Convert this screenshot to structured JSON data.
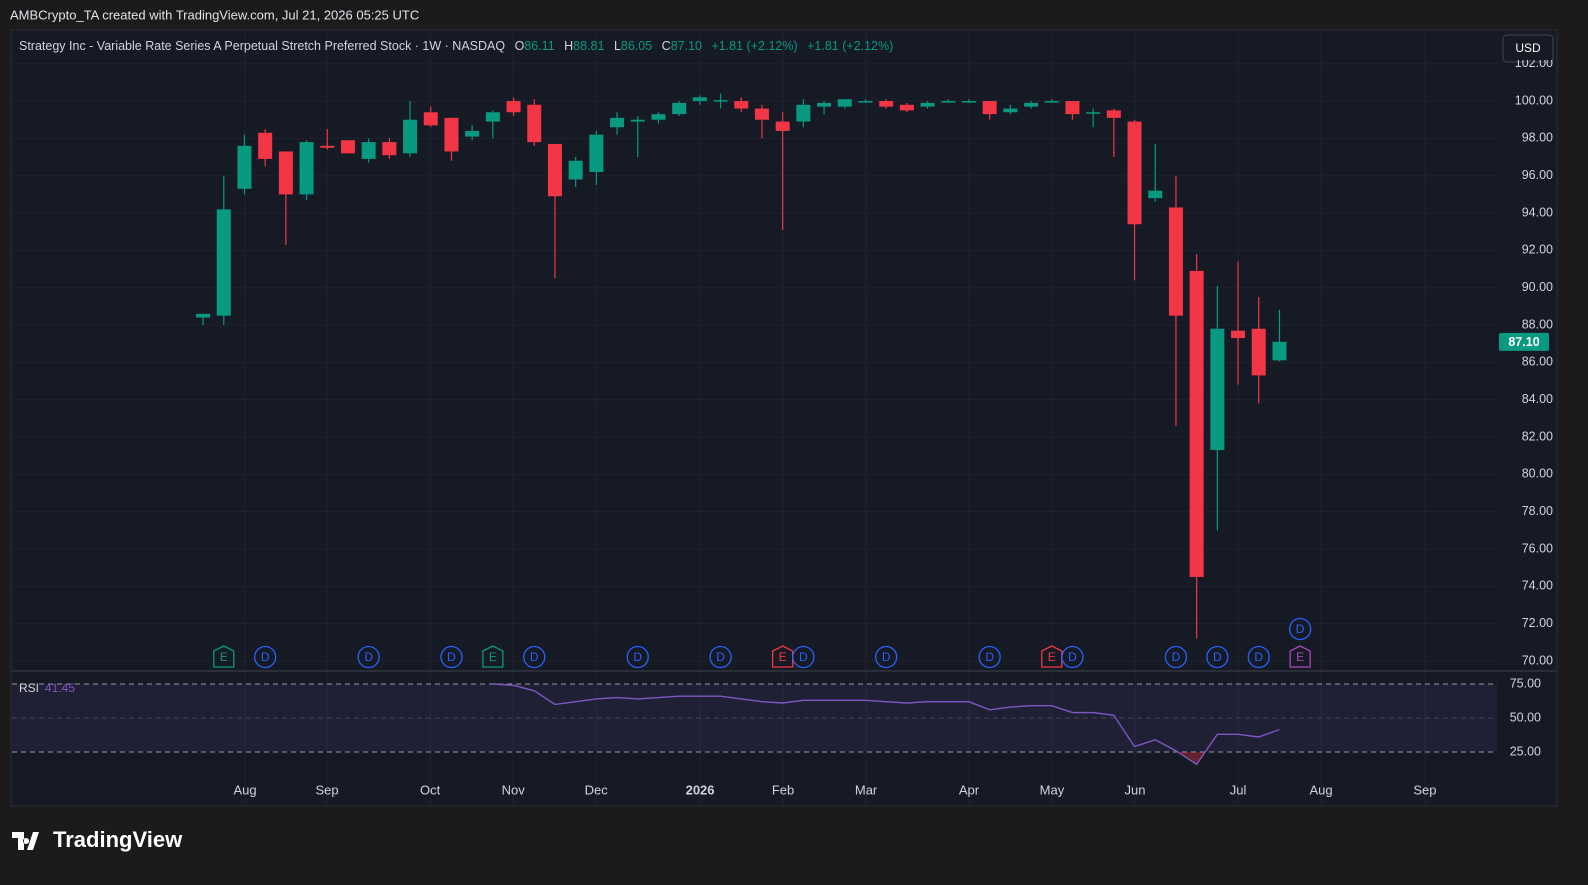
{
  "header": {
    "credit": "AMBCrypto_TA created with TradingView.com, Jul 21, 2026 05:25 UTC",
    "symbol": "Strategy Inc - Variable Rate Series A Perpetual Stretch Preferred Stock · 1W · NASDAQ",
    "o_key": "O",
    "o": "86.11",
    "h_key": "H",
    "h": "88.81",
    "l_key": "L",
    "l": "86.05",
    "c_key": "C",
    "c": "87.10",
    "change": "+1.81 (+2.12%)",
    "change2": "+1.81 (+2.12%)",
    "currency": "USD"
  },
  "footer": {
    "brand": "TradingView"
  },
  "chart_data": [
    {
      "type": "candlestick",
      "up_color": "#089981",
      "down_color": "#f23645",
      "grid": true,
      "xlim": [
        -9.23,
        62.51
      ],
      "xticks": [
        {
          "value": 2.03,
          "label": "Aug"
        },
        {
          "value": 5.99,
          "label": "Sep"
        },
        {
          "value": 10.97,
          "label": "Oct"
        },
        {
          "value": 14.98,
          "label": "Nov"
        },
        {
          "value": 18.99,
          "label": "Dec"
        },
        {
          "value": 24.01,
          "label": "2026"
        },
        {
          "value": 28.02,
          "label": "Feb"
        },
        {
          "value": 32.03,
          "label": "Mar"
        },
        {
          "value": 37.0,
          "label": "Apr"
        },
        {
          "value": 41.01,
          "label": "May"
        },
        {
          "value": 45.02,
          "label": "Jun"
        },
        {
          "value": 50.0,
          "label": "Jul"
        },
        {
          "value": 54.01,
          "label": "Aug"
        },
        {
          "value": 59.03,
          "label": "Sep"
        }
      ],
      "ylim": [
        69.5,
        102.2
      ],
      "yticks": [
        {
          "value": 70,
          "label": "70.00"
        },
        {
          "value": 72,
          "label": "72.00"
        },
        {
          "value": 74,
          "label": "74.00"
        },
        {
          "value": 76,
          "label": "76.00"
        },
        {
          "value": 78,
          "label": "78.00"
        },
        {
          "value": 80,
          "label": "80.00"
        },
        {
          "value": 82,
          "label": "82.00"
        },
        {
          "value": 84,
          "label": "84.00"
        },
        {
          "value": 86,
          "label": "86.00"
        },
        {
          "value": 88,
          "label": "88.00"
        },
        {
          "value": 90,
          "label": "90.00"
        },
        {
          "value": 92,
          "label": "92.00"
        },
        {
          "value": 94,
          "label": "94.00"
        },
        {
          "value": 96,
          "label": "96.00"
        },
        {
          "value": 98,
          "label": "98.00"
        },
        {
          "value": 100,
          "label": "100.00"
        },
        {
          "value": 102,
          "label": "102.00"
        }
      ],
      "x": [
        0,
        1,
        2,
        3,
        4,
        5,
        6,
        7,
        8,
        9,
        10,
        11,
        12,
        13,
        14,
        15,
        16,
        17,
        18,
        19,
        20,
        21,
        22,
        23,
        24,
        25,
        26,
        27,
        28,
        29,
        30,
        31,
        32,
        33,
        34,
        35,
        36,
        37,
        38,
        39,
        40,
        41,
        42,
        43,
        44,
        45,
        46,
        47,
        48,
        49,
        50,
        51,
        52
      ],
      "open": [
        88.4,
        88.5,
        95.3,
        98.3,
        97.3,
        95.0,
        97.6,
        97.9,
        96.9,
        97.8,
        97.2,
        99.4,
        99.1,
        98.1,
        98.9,
        100.0,
        99.8,
        97.7,
        95.8,
        96.2,
        98.6,
        98.9,
        99.0,
        99.3,
        100.0,
        100.0,
        100.0,
        99.6,
        98.9,
        98.9,
        99.7,
        99.7,
        100.0,
        100.0,
        99.8,
        99.7,
        100.0,
        100.0,
        100.0,
        99.4,
        99.7,
        100.0,
        100.0,
        99.4,
        99.5,
        98.9,
        94.8,
        94.3,
        90.9,
        81.3,
        87.7,
        87.8,
        86.11
      ],
      "high": [
        88.6,
        96.0,
        98.2,
        98.5,
        97.3,
        97.9,
        98.5,
        97.9,
        98.0,
        98.0,
        100.0,
        99.7,
        99.1,
        98.7,
        99.5,
        100.2,
        100.1,
        97.7,
        97.0,
        98.4,
        99.4,
        99.2,
        99.4,
        100.0,
        100.3,
        100.4,
        100.2,
        99.8,
        99.4,
        100.1,
        100.0,
        100.1,
        100.1,
        100.1,
        99.9,
        100.0,
        100.1,
        100.1,
        100.0,
        99.8,
        100.0,
        100.1,
        100.0,
        99.6,
        99.6,
        99.0,
        97.7,
        96.0,
        91.8,
        90.1,
        91.4,
        89.5,
        88.81
      ],
      "low": [
        88.0,
        88.0,
        95.0,
        96.5,
        92.3,
        94.7,
        97.4,
        97.2,
        96.7,
        96.9,
        97.0,
        98.6,
        96.8,
        97.9,
        98.0,
        99.2,
        97.6,
        90.5,
        95.4,
        95.5,
        98.2,
        97.0,
        98.8,
        99.2,
        99.8,
        99.6,
        99.4,
        98.0,
        93.1,
        98.6,
        99.3,
        99.6,
        99.9,
        99.6,
        99.4,
        99.6,
        99.9,
        99.9,
        99.0,
        99.3,
        99.6,
        99.9,
        99.0,
        98.6,
        97.0,
        90.4,
        94.6,
        82.6,
        71.2,
        77.0,
        84.8,
        83.8,
        86.05
      ],
      "close": [
        88.6,
        94.2,
        97.6,
        96.9,
        95.0,
        97.8,
        97.5,
        97.2,
        97.8,
        97.1,
        99.0,
        98.7,
        97.3,
        98.4,
        99.4,
        99.4,
        97.8,
        94.9,
        96.8,
        98.2,
        99.1,
        99.0,
        99.3,
        99.9,
        100.2,
        100.05,
        99.6,
        99.0,
        98.4,
        99.8,
        99.9,
        100.1,
        100.0,
        99.7,
        99.5,
        99.9,
        100.0,
        100.0,
        99.3,
        99.6,
        99.9,
        100.0,
        99.3,
        99.4,
        99.1,
        93.4,
        95.2,
        88.5,
        74.5,
        87.8,
        87.3,
        85.3,
        87.1
      ],
      "events": [
        {
          "x": 1,
          "label": "E",
          "color": "#089981"
        },
        {
          "x": 3,
          "label": "D",
          "color": "#2962ff"
        },
        {
          "x": 8,
          "label": "D",
          "color": "#2962ff"
        },
        {
          "x": 12,
          "label": "D",
          "color": "#2962ff"
        },
        {
          "x": 14,
          "label": "E",
          "color": "#089981"
        },
        {
          "x": 16,
          "label": "D",
          "color": "#2962ff"
        },
        {
          "x": 21,
          "label": "D",
          "color": "#2962ff"
        },
        {
          "x": 25,
          "label": "D",
          "color": "#2962ff"
        },
        {
          "x": 28,
          "label": "E",
          "color": "#f23645"
        },
        {
          "x": 29,
          "label": "D",
          "color": "#2962ff"
        },
        {
          "x": 33,
          "label": "D",
          "color": "#2962ff"
        },
        {
          "x": 38,
          "label": "D",
          "color": "#2962ff"
        },
        {
          "x": 41,
          "label": "E",
          "color": "#f23645"
        },
        {
          "x": 42,
          "label": "D",
          "color": "#2962ff"
        },
        {
          "x": 47,
          "label": "D",
          "color": "#2962ff"
        },
        {
          "x": 49,
          "label": "D",
          "color": "#2962ff"
        },
        {
          "x": 51,
          "label": "D",
          "color": "#2962ff"
        },
        {
          "x": 53,
          "label": "E",
          "color": "#ab47bc"
        },
        {
          "x": 53,
          "label": "D",
          "color": "#2962ff"
        }
      ]
    },
    {
      "type": "line",
      "name": "RSI",
      "color": "#7e57c2",
      "band_color": "#7e57c2",
      "xlim": [
        -9.23,
        62.51
      ],
      "ylim": [
        -13.2,
        83.8
      ],
      "yticks": [
        {
          "value": 25,
          "label": "25.00"
        },
        {
          "value": 50,
          "label": "50.00"
        },
        {
          "value": 75,
          "label": "75.00"
        }
      ],
      "x": [
        14,
        15,
        16,
        17,
        18,
        19,
        20,
        21,
        22,
        23,
        24,
        25,
        26,
        27,
        28,
        29,
        30,
        31,
        32,
        33,
        34,
        35,
        36,
        37,
        38,
        39,
        40,
        41,
        42,
        43,
        44,
        45,
        46,
        47,
        48,
        49,
        50,
        51,
        52
      ],
      "values": [
        75,
        74,
        70,
        60,
        62,
        64,
        65,
        64,
        65,
        66,
        66,
        66,
        64,
        62,
        61,
        63,
        63,
        63,
        63,
        62,
        61,
        62,
        62,
        62,
        56,
        58,
        59,
        59,
        54,
        54,
        52,
        29,
        34,
        26,
        16,
        38,
        38,
        36,
        41.45
      ]
    }
  ]
}
